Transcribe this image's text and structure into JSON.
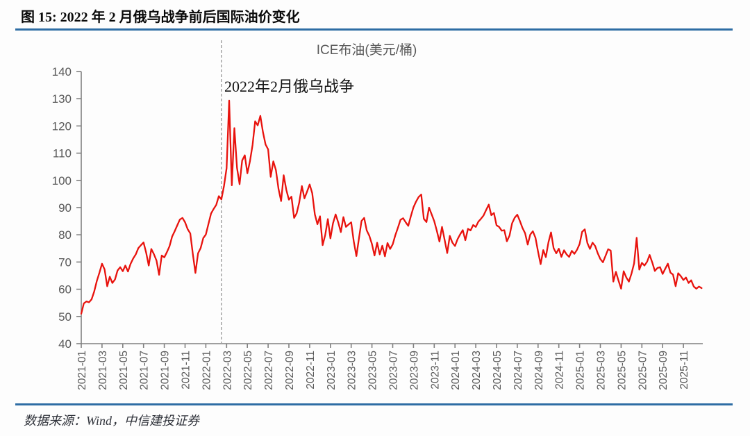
{
  "figure": {
    "title": "图 15: 2022 年 2 月俄乌战争前后国际油价变化",
    "source": "数据来源：Wind，中信建投证券",
    "accent_color": "#2e6da4"
  },
  "chart_data": {
    "type": "line",
    "title": "ICE布油(美元/桶)",
    "annotation": "2022年2月俄乌战争",
    "ylim": [
      40,
      140
    ],
    "y_ticks": [
      40,
      50,
      60,
      70,
      80,
      90,
      100,
      110,
      120,
      130,
      140
    ],
    "x_tick_labels": [
      "2021-01",
      "2021-03",
      "2021-05",
      "2021-07",
      "2021-09",
      "2021-11",
      "2022-01",
      "2022-03",
      "2022-05",
      "2022-07",
      "2022-09",
      "2022-11",
      "2023-01",
      "2023-03",
      "2023-05",
      "2023-07",
      "2023-09",
      "2023-11",
      "2024-01",
      "2024-03",
      "2024-05",
      "2024-07",
      "2024-09",
      "2024-11",
      "2025-01",
      "2025-03",
      "2025-05",
      "2025-07",
      "2025-09",
      "2025-11"
    ],
    "x_start": "2021-01",
    "points_per_month": 4,
    "grid": "off",
    "legend": "none",
    "event_line": {
      "date": "2022-02",
      "label": "2022年2月俄乌战争",
      "month_index": 13.5
    },
    "style": {
      "axis_color": "#808080",
      "tick_text_color": "#595959",
      "event_line_color": "#a3a3a3"
    },
    "series": [
      {
        "name": "ICE布油(美元/桶)",
        "unit": "美元/桶",
        "color": "#e8120d",
        "values": [
          51.0,
          54.8,
          55.5,
          55.2,
          56.3,
          59.2,
          63.0,
          66.1,
          69.4,
          67.3,
          61.1,
          64.6,
          62.3,
          63.6,
          66.9,
          68.1,
          66.6,
          68.7,
          66.5,
          69.3,
          71.3,
          72.8,
          75.1,
          76.2,
          77.2,
          73.5,
          68.7,
          74.8,
          72.9,
          70.5,
          65.3,
          72.4,
          71.7,
          73.6,
          75.8,
          79.3,
          81.3,
          83.5,
          85.6,
          86.2,
          84.6,
          82.1,
          80.5,
          72.9,
          66.0,
          73.2,
          75.1,
          78.8,
          80.1,
          83.9,
          87.8,
          89.5,
          91.0,
          94.2,
          93.0,
          98.0,
          104.5,
          129.3,
          98.2,
          119.2,
          104.6,
          98.6,
          107.3,
          109.2,
          102.6,
          107.0,
          113.0,
          121.7,
          120.2,
          123.7,
          117.8,
          113.2,
          111.4,
          101.3,
          107.0,
          103.8,
          96.8,
          92.4,
          101.9,
          96.5,
          92.9,
          94.0,
          86.2,
          87.9,
          91.9,
          97.9,
          93.4,
          95.9,
          98.5,
          95.3,
          87.5,
          83.9,
          86.8,
          76.2,
          79.9,
          85.8,
          78.7,
          84.2,
          87.5,
          84.6,
          81.0,
          86.5,
          82.9,
          83.8,
          84.6,
          77.6,
          72.2,
          78.7,
          85.1,
          86.2,
          81.6,
          79.6,
          76.6,
          72.4,
          77.1,
          72.8,
          76.0,
          72.1,
          77.0,
          74.8,
          76.5,
          79.8,
          82.6,
          85.5,
          86.1,
          84.6,
          83.3,
          86.9,
          90.1,
          92.2,
          93.9,
          94.8,
          85.9,
          84.7,
          90.0,
          87.5,
          85.0,
          81.5,
          77.5,
          82.9,
          78.1,
          73.3,
          79.6,
          77.1,
          75.9,
          78.4,
          80.2,
          81.7,
          78.0,
          82.2,
          81.6,
          83.6,
          82.9,
          84.8,
          85.9,
          87.1,
          89.1,
          91.1,
          87.2,
          88.0,
          83.5,
          82.9,
          81.5,
          81.7,
          77.6,
          79.7,
          84.2,
          86.3,
          87.4,
          85.1,
          82.5,
          80.6,
          76.4,
          80.1,
          81.3,
          78.9,
          73.8,
          69.2,
          74.4,
          71.8,
          77.3,
          80.9,
          75.1,
          73.2,
          74.9,
          71.9,
          74.3,
          72.8,
          71.9,
          74.1,
          73.0,
          74.5,
          76.6,
          81.1,
          82.0,
          77.0,
          74.8,
          77.1,
          75.9,
          73.2,
          71.1,
          69.9,
          72.3,
          74.7,
          74.2,
          62.8,
          66.4,
          63.1,
          60.2,
          66.6,
          64.3,
          62.8,
          65.7,
          69.5,
          78.9,
          67.2,
          69.7,
          68.7,
          70.1,
          72.6,
          69.8,
          66.7,
          67.8,
          68.1,
          65.6,
          67.5,
          69.4,
          66.1,
          65.4,
          61.1,
          65.9,
          64.8,
          63.4,
          64.3,
          62.3,
          63.3,
          61.0,
          60.2,
          61.0,
          60.4
        ]
      }
    ]
  }
}
